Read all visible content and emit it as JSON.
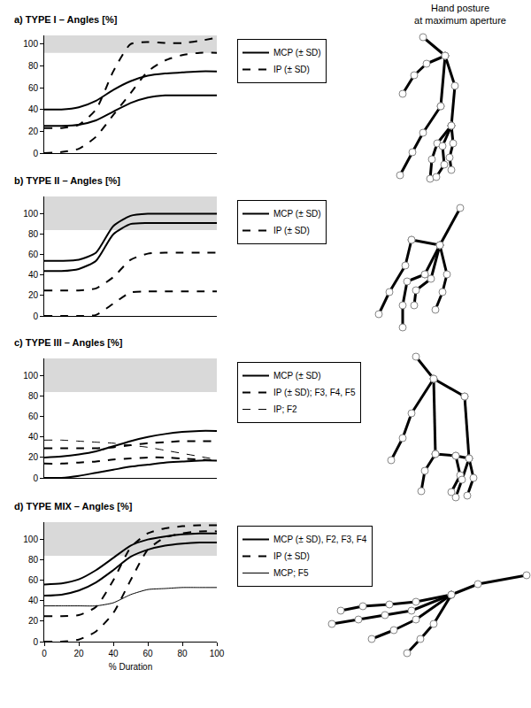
{
  "side_title": [
    "Hand posture",
    "at maximum aperture"
  ],
  "chart_data": [
    {
      "type": "line",
      "title": "a) TYPE I – Angles [%]",
      "x": [
        0,
        10,
        20,
        30,
        40,
        50,
        60,
        70,
        80,
        90,
        100
      ],
      "xlim": [
        0,
        100
      ],
      "ylim": [
        0,
        108
      ],
      "yticks": [
        0,
        20,
        40,
        60,
        80,
        100
      ],
      "tick_labels": "y",
      "grid": false,
      "shaded_band": [
        92,
        108
      ],
      "series": [
        {
          "name": "MCP (± SD)",
          "color": "#000000",
          "line_style": "solid",
          "upper": [
            40,
            40,
            42,
            48,
            58,
            66,
            71,
            73,
            74,
            75,
            75
          ],
          "lower": [
            25,
            25,
            26,
            30,
            38,
            46,
            51,
            53,
            53,
            53,
            53
          ]
        },
        {
          "name": "IP (± SD)",
          "color": "#000000",
          "line_style": "dash",
          "upper": [
            23,
            23,
            26,
            40,
            75,
            100,
            102,
            101,
            101,
            103,
            106
          ],
          "lower": [
            0,
            1,
            4,
            15,
            35,
            55,
            75,
            85,
            90,
            92,
            92
          ]
        }
      ]
    },
    {
      "type": "line",
      "title": "b) TYPE II – Angles [%]",
      "x": [
        0,
        10,
        20,
        30,
        40,
        50,
        60,
        70,
        80,
        90,
        100
      ],
      "xlim": [
        0,
        100
      ],
      "ylim": [
        0,
        117
      ],
      "yticks": [
        0,
        20,
        40,
        60,
        80,
        100
      ],
      "tick_labels": "y",
      "grid": false,
      "shaded_band": [
        84,
        117
      ],
      "series": [
        {
          "name": "MCP (± SD)",
          "color": "#000000",
          "line_style": "solid",
          "upper": [
            54,
            54,
            55,
            62,
            88,
            98,
            100,
            100,
            100,
            100,
            100
          ],
          "lower": [
            44,
            44,
            46,
            54,
            80,
            90,
            91,
            91,
            91,
            91,
            91
          ]
        },
        {
          "name": "IP (± SD)",
          "color": "#000000",
          "line_style": "dash",
          "upper": [
            25,
            25,
            25,
            27,
            38,
            55,
            61,
            62,
            62,
            62,
            62
          ],
          "lower": [
            0,
            0,
            0,
            1,
            12,
            23,
            24,
            24,
            24,
            24,
            24
          ]
        }
      ]
    },
    {
      "type": "line",
      "title": "c) TYPE III – Angles [%]",
      "x": [
        0,
        10,
        20,
        30,
        40,
        50,
        60,
        70,
        80,
        90,
        100
      ],
      "xlim": [
        0,
        100
      ],
      "ylim": [
        0,
        117
      ],
      "yticks": [
        0,
        20,
        40,
        60,
        80,
        100
      ],
      "tick_labels": "y",
      "grid": false,
      "shaded_band": [
        84,
        117
      ],
      "series": [
        {
          "name": "MCP (± SD)",
          "color": "#000000",
          "line_style": "solid",
          "upper": [
            20,
            21,
            23,
            26,
            31,
            36,
            40,
            43,
            45,
            46,
            46
          ],
          "lower": [
            0,
            0,
            2,
            5,
            8,
            11,
            13,
            15,
            16,
            17,
            17
          ]
        },
        {
          "name": "IP (± SD); F3, F4, F5",
          "color": "#000000",
          "line_style": "dash",
          "upper": [
            29,
            29,
            29,
            29,
            30,
            32,
            34,
            35,
            36,
            36,
            36
          ],
          "lower": [
            14,
            14,
            15,
            16,
            18,
            19,
            20,
            20,
            19,
            18,
            17
          ]
        },
        {
          "name": "IP; F2",
          "color": "#000000",
          "line_style": "dash",
          "values": [
            37,
            37,
            36,
            35,
            34,
            32,
            30,
            27,
            24,
            21,
            18
          ]
        }
      ]
    },
    {
      "type": "line",
      "title": "d) TYPE MIX – Angles [%]",
      "x": [
        0,
        10,
        20,
        30,
        40,
        50,
        60,
        70,
        80,
        90,
        100
      ],
      "xlim": [
        0,
        100
      ],
      "ylim": [
        0,
        117
      ],
      "xticks": [
        0,
        20,
        40,
        60,
        80,
        100
      ],
      "yticks": [
        0,
        20,
        40,
        60,
        80,
        100
      ],
      "xlabel": "% Duration",
      "grid": false,
      "shaded_band": [
        84,
        117
      ],
      "series": [
        {
          "name": "MCP (± SD), F2, F3, F4",
          "color": "#000000",
          "line_style": "solid",
          "upper": [
            56,
            57,
            61,
            70,
            82,
            94,
            100,
            103,
            105,
            106,
            106
          ],
          "lower": [
            45,
            46,
            50,
            58,
            70,
            83,
            90,
            94,
            96,
            97,
            97
          ]
        },
        {
          "name": "IP (± SD)",
          "color": "#000000",
          "line_style": "dash",
          "upper": [
            25,
            25,
            26,
            34,
            60,
            92,
            106,
            111,
            113,
            114,
            114
          ],
          "lower": [
            0,
            0,
            2,
            10,
            28,
            60,
            90,
            102,
            106,
            108,
            108
          ]
        },
        {
          "name": "MCP; F5",
          "color": "#000000",
          "line_style": "solid",
          "values": [
            35,
            35,
            35,
            35,
            38,
            46,
            51,
            52,
            53,
            53,
            53
          ]
        }
      ]
    }
  ]
}
